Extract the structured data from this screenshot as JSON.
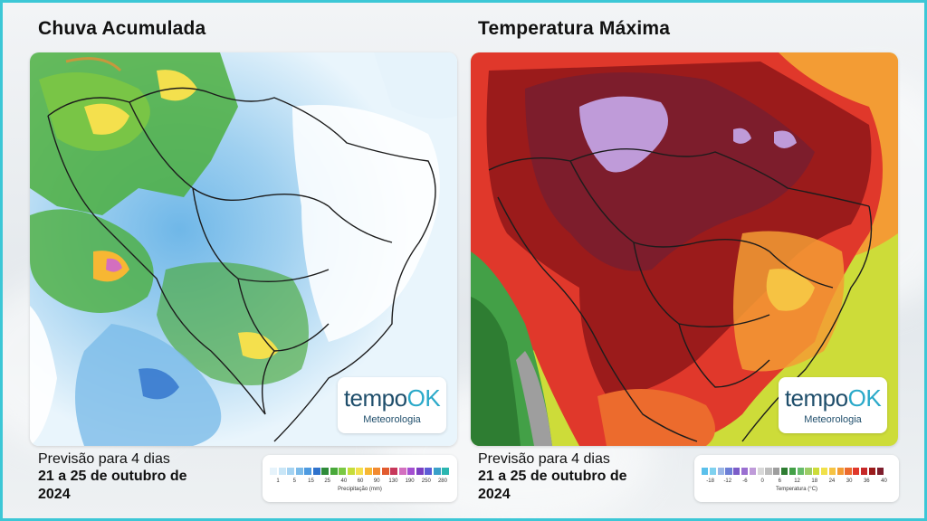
{
  "left_panel": {
    "title": "Chuva Acumulada",
    "forecast_line1": "Previsão para 4 dias",
    "forecast_line2": "21 a 25 de outubro de 2024",
    "legend": {
      "caption": "Precipitação (mm)",
      "ticks": [
        "1",
        "5",
        "15",
        "25",
        "40",
        "60",
        "90",
        "130",
        "190",
        "250",
        "280"
      ],
      "colors": [
        "#e6f3fb",
        "#c9e6f7",
        "#a5d3f2",
        "#7cbbe9",
        "#4d9ae0",
        "#2f72cc",
        "#2e8b3a",
        "#49a93a",
        "#7ac943",
        "#c6dd3a",
        "#f4e04d",
        "#f7b733",
        "#f28a30",
        "#e25b2f",
        "#c7375a",
        "#d36fbf",
        "#a44fd1",
        "#7b3fc2",
        "#5c5cd6",
        "#39a0c9",
        "#2bb6b0"
      ]
    }
  },
  "right_panel": {
    "title": "Temperatura Máxima",
    "forecast_line1": "Previsão para 4 dias",
    "forecast_line2": "21 a 25 de outubro de 2024",
    "legend": {
      "caption": "Temperatura (°C)",
      "ticks": [
        "-18",
        "-12",
        "-6",
        "0",
        "6",
        "12",
        "18",
        "24",
        "30",
        "36",
        "40"
      ],
      "colors": [
        "#5bc0eb",
        "#7fd1ef",
        "#9ab6e6",
        "#6c7fd6",
        "#7b5cc8",
        "#9a6fd1",
        "#bf9bd9",
        "#d8d8d8",
        "#bdbdbd",
        "#9e9e9e",
        "#2e7d32",
        "#43a047",
        "#66bb6a",
        "#9ccc65",
        "#cddc39",
        "#f0e14a",
        "#f6c343",
        "#f39c34",
        "#ec6b2d",
        "#e0382b",
        "#c62828",
        "#9b1b1b",
        "#7d1d2c"
      ]
    }
  },
  "brand": {
    "name_part1": "tempo",
    "name_part2": "OK",
    "tagline": "Meteorologia"
  }
}
